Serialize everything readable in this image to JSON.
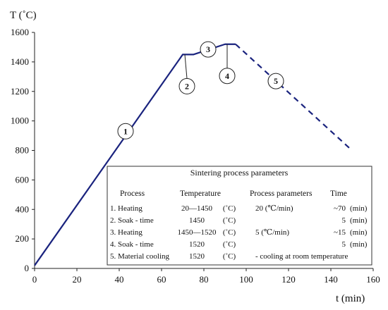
{
  "chart_data": {
    "type": "line",
    "ylabel": "T (˚C)",
    "xlabel": "t (min)",
    "xlim": [
      0,
      160
    ],
    "ylim": [
      0,
      1600
    ],
    "xticks": [
      0,
      20,
      40,
      60,
      80,
      100,
      120,
      140,
      160
    ],
    "yticks": [
      0,
      200,
      400,
      600,
      800,
      1000,
      1200,
      1400,
      1600
    ],
    "grid": false,
    "line_color": "#1a237e",
    "series_solid": [
      {
        "x": 0,
        "y": 20
      },
      {
        "x": 70,
        "y": 1450
      },
      {
        "x": 75,
        "y": 1450
      },
      {
        "x": 90,
        "y": 1520
      },
      {
        "x": 95,
        "y": 1520
      }
    ],
    "series_dashed": [
      {
        "x": 95,
        "y": 1520
      },
      {
        "x": 150,
        "y": 800
      }
    ],
    "markers": [
      {
        "label": "1",
        "anchor_x": 43,
        "anchor_y": 930
      },
      {
        "label": "2",
        "anchor_x": 71,
        "anchor_y": 1450
      },
      {
        "label": "3",
        "anchor_x": 82,
        "anchor_y": 1485
      },
      {
        "label": "4",
        "anchor_x": 91,
        "anchor_y": 1520
      },
      {
        "label": "5",
        "anchor_x": 114,
        "anchor_y": 1270
      }
    ],
    "table": {
      "title": "Sintering process parameters",
      "headers": [
        "Process",
        "Temperature",
        "Process parameters",
        "Time"
      ],
      "rows": [
        {
          "process": "1. Heating",
          "temp": "20—1450",
          "unit": "(˚C)",
          "params": "20  (℃/min)",
          "time": "~70",
          "time_unit": "(min)"
        },
        {
          "process": "2. Soak - time",
          "temp": "1450",
          "unit": "(˚C)",
          "params": "",
          "time": "5",
          "time_unit": "(min)"
        },
        {
          "process": "3. Heating",
          "temp": "1450—1520",
          "unit": "(˚C)",
          "params": "5  (℃/min)",
          "time": "~15",
          "time_unit": "(min)"
        },
        {
          "process": "4. Soak - time",
          "temp": "1520",
          "unit": "(˚C)",
          "params": "",
          "time": "5",
          "time_unit": "(min)"
        },
        {
          "process": "5. Material cooling",
          "temp": "1520",
          "unit": "(˚C)",
          "params": "-  cooling at room temperature",
          "time": "",
          "time_unit": ""
        }
      ]
    }
  }
}
